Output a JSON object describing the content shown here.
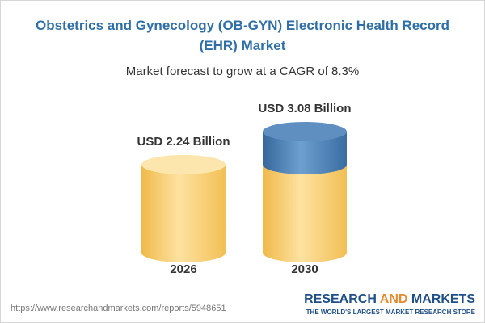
{
  "chart_data": {
    "type": "cylinder",
    "title": "Obstetrics and Gynecology (OB-GYN) Electronic Health Record (EHR) Market",
    "subtitle": "Market forecast to grow at a CAGR of 8.3%",
    "categories": [
      "2026",
      "2030"
    ],
    "values": [
      2.24,
      3.08
    ],
    "value_labels": [
      "USD 2.24 Billion",
      "USD 3.08 Billion"
    ],
    "colors": [
      "#f3c25f",
      "#4377ad"
    ]
  },
  "footer": {
    "url": "https://www.researchandmarkets.com/reports/5948651",
    "brand": [
      "RESEARCH",
      "AND",
      "MARKETS"
    ],
    "tagline": "THE WORLD'S LARGEST MARKET RESEARCH STORE"
  }
}
